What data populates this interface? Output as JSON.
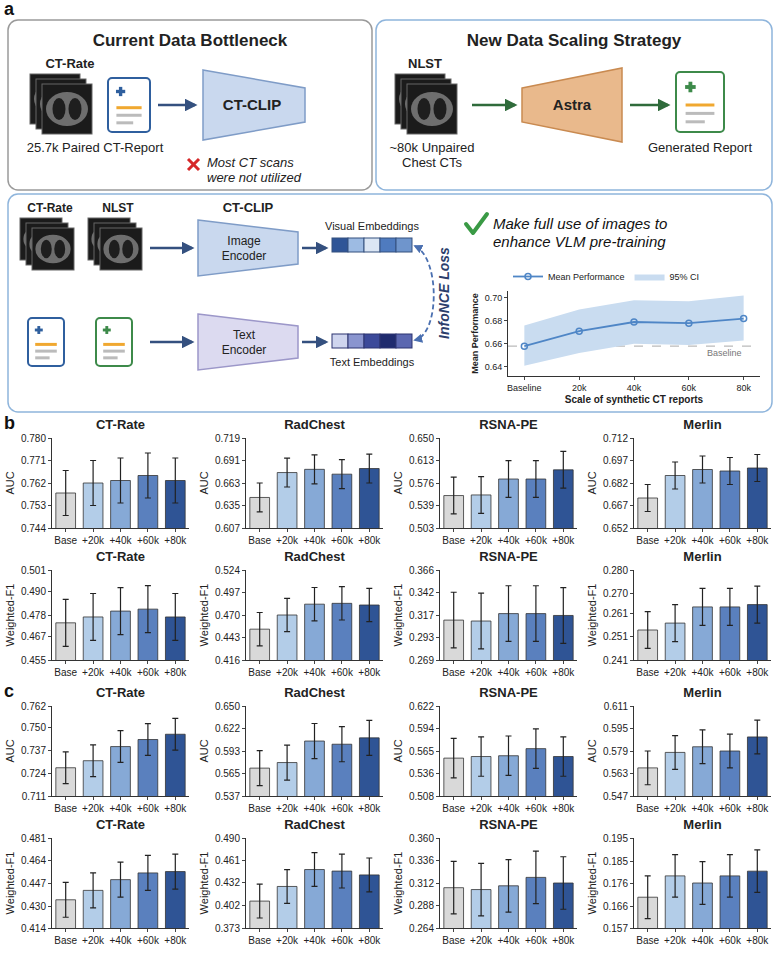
{
  "panel_labels": [
    "a",
    "b",
    "c"
  ],
  "diagram": {
    "bottleneck": {
      "title": "Current Data Bottleneck",
      "dataset": "CT-Rate",
      "caption": "25.7k Paired CT-Report",
      "model": "CT-CLIP",
      "note": "Most CT scans were not utilized"
    },
    "scaling": {
      "title": "New Data Scaling Strategy",
      "dataset": "NLST",
      "caption": "~80k Unpaired Chest CTs",
      "model": "Astra",
      "output": "Generated Report"
    },
    "pretraining": {
      "datasets": [
        "CT-Rate",
        "NLST"
      ],
      "model": "CT-CLIP",
      "image_encoder": "Image Encoder",
      "text_encoder": "Text Encoder",
      "visual_embeddings": "Visual Embeddings",
      "text_embeddings": "Text Embeddings",
      "loss": "InfoNCE Loss",
      "message": "Make full use of images to enhance VLM pre-training"
    }
  },
  "chart_data": [
    {
      "type": "line",
      "xlabel": "Scale of synthetic CT reports",
      "ylabel": "Mean Performance",
      "categories": [
        "Baseline",
        "20k",
        "40k",
        "60k",
        "80k"
      ],
      "series": [
        {
          "name": "Mean Performance",
          "color": "#4f86c6",
          "marker": "open circle",
          "values": [
            0.658,
            0.671,
            0.679,
            0.678,
            0.682
          ]
        }
      ],
      "band": {
        "name": "95% CI",
        "color": "#c9dcf0",
        "lower": [
          0.641,
          0.652,
          0.66,
          0.659,
          0.663
        ],
        "upper": [
          0.676,
          0.69,
          0.698,
          0.697,
          0.702
        ]
      },
      "reference": {
        "label": "Baseline",
        "value": 0.658,
        "color": "#bbbbbb",
        "line_style": "dashed"
      },
      "ylim": [
        0.632,
        0.706
      ],
      "yticks": [
        0.64,
        0.66,
        0.68,
        {
          "value": 0.7,
          "label": "0.70"
        }
      ],
      "legend": "top"
    },
    {
      "type": "bar",
      "title": "CT-Rate",
      "ylabel": "AUC",
      "categories": [
        "Base",
        "+20k",
        "+40k",
        "+60k",
        "+80k"
      ],
      "values": [
        0.758,
        0.762,
        0.763,
        0.765,
        0.763
      ],
      "errors": [
        0.009,
        0.009,
        0.009,
        0.009,
        0.009
      ],
      "colors": [
        "#d9d9d9",
        "#b3cde8",
        "#86a9d6",
        "#5a80be",
        "#2f5495"
      ],
      "ylim": [
        0.744,
        0.78
      ],
      "yticks": [
        0.744,
        0.753,
        0.762,
        0.771,
        {
          "value": 0.78,
          "label": "0.780"
        }
      ]
    },
    {
      "type": "bar",
      "title": "RadChest",
      "ylabel": "AUC",
      "categories": [
        "Base",
        "+20k",
        "+40k",
        "+60k",
        "+80k"
      ],
      "values": [
        0.645,
        0.676,
        0.68,
        0.674,
        0.681
      ],
      "errors": [
        0.018,
        0.018,
        0.018,
        0.018,
        0.018
      ],
      "colors": [
        "#d9d9d9",
        "#b3cde8",
        "#86a9d6",
        "#5a80be",
        "#2f5495"
      ],
      "ylim": [
        0.607,
        0.719
      ],
      "yticks": [
        0.607,
        0.635,
        0.663,
        0.691,
        0.719
      ]
    },
    {
      "type": "bar",
      "title": "RSNA-PE",
      "ylabel": "AUC",
      "categories": [
        "Base",
        "+20k",
        "+40k",
        "+60k",
        "+80k"
      ],
      "values": [
        0.556,
        0.557,
        0.583,
        0.583,
        0.598
      ],
      "errors": [
        0.03,
        0.03,
        0.03,
        0.03,
        0.03
      ],
      "colors": [
        "#d9d9d9",
        "#b3cde8",
        "#86a9d6",
        "#5a80be",
        "#2f5495"
      ],
      "ylim": [
        0.503,
        0.65
      ],
      "yticks": [
        0.503,
        0.539,
        0.576,
        0.613,
        {
          "value": 0.65,
          "label": "0.650"
        }
      ]
    },
    {
      "type": "bar",
      "title": "Merlin",
      "ylabel": "AUC",
      "categories": [
        "Base",
        "+20k",
        "+40k",
        "+60k",
        "+80k"
      ],
      "values": [
        0.672,
        0.687,
        0.691,
        0.69,
        0.692
      ],
      "errors": [
        0.009,
        0.009,
        0.009,
        0.009,
        0.009
      ],
      "colors": [
        "#d9d9d9",
        "#b3cde8",
        "#86a9d6",
        "#5a80be",
        "#2f5495"
      ],
      "ylim": [
        0.652,
        0.712
      ],
      "yticks": [
        0.652,
        0.667,
        0.682,
        0.697,
        0.712
      ]
    },
    {
      "type": "bar",
      "title": "CT-Rate",
      "ylabel": "Weighted-F1",
      "categories": [
        "Base",
        "+20k",
        "+40k",
        "+60k",
        "+80k"
      ],
      "values": [
        0.474,
        0.477,
        0.48,
        0.481,
        0.477
      ],
      "errors": [
        0.012,
        0.012,
        0.012,
        0.012,
        0.012
      ],
      "colors": [
        "#d9d9d9",
        "#b3cde8",
        "#86a9d6",
        "#5a80be",
        "#2f5495"
      ],
      "ylim": [
        0.455,
        0.501
      ],
      "yticks": [
        0.455,
        0.467,
        0.478,
        {
          "value": 0.49,
          "label": "0.490"
        },
        0.501
      ]
    },
    {
      "type": "bar",
      "title": "RadChest",
      "ylabel": "Weighted-F1",
      "categories": [
        "Base",
        "+20k",
        "+40k",
        "+60k",
        "+80k"
      ],
      "values": [
        0.453,
        0.47,
        0.483,
        0.484,
        0.482
      ],
      "errors": [
        0.02,
        0.02,
        0.02,
        0.02,
        0.02
      ],
      "colors": [
        "#d9d9d9",
        "#b3cde8",
        "#86a9d6",
        "#5a80be",
        "#2f5495"
      ],
      "ylim": [
        0.416,
        0.524
      ],
      "yticks": [
        0.416,
        0.443,
        {
          "value": 0.47,
          "label": "0.470"
        },
        0.497,
        0.524
      ]
    },
    {
      "type": "bar",
      "title": "RSNA-PE",
      "ylabel": "Weighted-F1",
      "categories": [
        "Base",
        "+20k",
        "+40k",
        "+60k",
        "+80k"
      ],
      "values": [
        0.312,
        0.311,
        0.319,
        0.319,
        0.317
      ],
      "errors": [
        0.03,
        0.03,
        0.03,
        0.03,
        0.03
      ],
      "colors": [
        "#d9d9d9",
        "#b3cde8",
        "#86a9d6",
        "#5a80be",
        "#2f5495"
      ],
      "ylim": [
        0.269,
        0.366
      ],
      "yticks": [
        0.269,
        0.293,
        0.317,
        0.342,
        0.366
      ]
    },
    {
      "type": "bar",
      "title": "Merlin",
      "ylabel": "Weighted-F1",
      "categories": [
        "Base",
        "+20k",
        "+40k",
        "+60k",
        "+80k"
      ],
      "values": [
        0.254,
        0.257,
        0.264,
        0.264,
        0.265
      ],
      "errors": [
        0.008,
        0.008,
        0.008,
        0.008,
        0.008
      ],
      "colors": [
        "#d9d9d9",
        "#b3cde8",
        "#86a9d6",
        "#5a80be",
        "#2f5495"
      ],
      "ylim": [
        0.241,
        0.28
      ],
      "yticks": [
        0.241,
        0.251,
        0.261,
        {
          "value": 0.27,
          "label": "0.270"
        },
        {
          "value": 0.28,
          "label": "0.280"
        }
      ]
    },
    {
      "type": "bar",
      "title": "CT-Rate",
      "ylabel": "AUC",
      "categories": [
        "Base",
        "+20k",
        "+40k",
        "+60k",
        "+80k"
      ],
      "values": [
        0.727,
        0.731,
        0.739,
        0.743,
        0.746
      ],
      "errors": [
        0.009,
        0.009,
        0.009,
        0.009,
        0.009
      ],
      "colors": [
        "#d9d9d9",
        "#b3cde8",
        "#86a9d6",
        "#5a80be",
        "#2f5495"
      ],
      "ylim": [
        0.711,
        0.762
      ],
      "yticks": [
        0.711,
        0.724,
        0.737,
        {
          "value": 0.75,
          "label": "0.750"
        },
        0.762
      ]
    },
    {
      "type": "bar",
      "title": "RadChest",
      "ylabel": "AUC",
      "categories": [
        "Base",
        "+20k",
        "+40k",
        "+60k",
        "+80k"
      ],
      "values": [
        0.572,
        0.579,
        0.606,
        0.602,
        0.61
      ],
      "errors": [
        0.022,
        0.022,
        0.022,
        0.022,
        0.022
      ],
      "colors": [
        "#d9d9d9",
        "#b3cde8",
        "#86a9d6",
        "#5a80be",
        "#2f5495"
      ],
      "ylim": [
        0.537,
        0.65
      ],
      "yticks": [
        0.537,
        0.565,
        0.593,
        0.622,
        {
          "value": 0.65,
          "label": "0.650"
        }
      ]
    },
    {
      "type": "bar",
      "title": "RSNA-PE",
      "ylabel": "AUC",
      "categories": [
        "Base",
        "+20k",
        "+40k",
        "+60k",
        "+80k"
      ],
      "values": [
        0.556,
        0.558,
        0.559,
        0.568,
        0.558
      ],
      "errors": [
        0.025,
        0.025,
        0.025,
        0.025,
        0.025
      ],
      "colors": [
        "#d9d9d9",
        "#b3cde8",
        "#86a9d6",
        "#5a80be",
        "#2f5495"
      ],
      "ylim": [
        0.508,
        0.622
      ],
      "yticks": [
        0.508,
        0.536,
        0.565,
        0.594,
        0.622
      ]
    },
    {
      "type": "bar",
      "title": "Merlin",
      "ylabel": "AUC",
      "categories": [
        "Base",
        "+20k",
        "+40k",
        "+60k",
        "+80k"
      ],
      "values": [
        0.567,
        0.578,
        0.582,
        0.579,
        0.589
      ],
      "errors": [
        0.012,
        0.012,
        0.012,
        0.012,
        0.012
      ],
      "colors": [
        "#d9d9d9",
        "#b3cde8",
        "#86a9d6",
        "#5a80be",
        "#2f5495"
      ],
      "ylim": [
        0.547,
        0.611
      ],
      "yticks": [
        0.547,
        0.563,
        0.579,
        0.595,
        0.611
      ]
    },
    {
      "type": "bar",
      "title": "CT-Rate",
      "ylabel": "Weighted-F1",
      "categories": [
        "Base",
        "+20k",
        "+40k",
        "+60k",
        "+80k"
      ],
      "values": [
        0.435,
        0.442,
        0.45,
        0.455,
        0.456
      ],
      "errors": [
        0.013,
        0.013,
        0.013,
        0.013,
        0.013
      ],
      "colors": [
        "#d9d9d9",
        "#b3cde8",
        "#86a9d6",
        "#5a80be",
        "#2f5495"
      ],
      "ylim": [
        0.414,
        0.481
      ],
      "yticks": [
        0.414,
        {
          "value": 0.43,
          "label": "0.430"
        },
        0.447,
        0.464,
        0.481
      ]
    },
    {
      "type": "bar",
      "title": "RadChest",
      "ylabel": "Weighted-F1",
      "categories": [
        "Base",
        "+20k",
        "+40k",
        "+60k",
        "+80k"
      ],
      "values": [
        0.408,
        0.427,
        0.449,
        0.447,
        0.442
      ],
      "errors": [
        0.022,
        0.022,
        0.022,
        0.022,
        0.022
      ],
      "colors": [
        "#d9d9d9",
        "#b3cde8",
        "#86a9d6",
        "#5a80be",
        "#2f5495"
      ],
      "ylim": [
        0.373,
        0.49
      ],
      "yticks": [
        0.373,
        0.402,
        0.432,
        0.461,
        {
          "value": 0.49,
          "label": "0.490"
        }
      ]
    },
    {
      "type": "bar",
      "title": "RSNA-PE",
      "ylabel": "Weighted-F1",
      "categories": [
        "Base",
        "+20k",
        "+40k",
        "+60k",
        "+80k"
      ],
      "values": [
        0.307,
        0.305,
        0.309,
        0.318,
        0.312
      ],
      "errors": [
        0.028,
        0.028,
        0.028,
        0.028,
        0.028
      ],
      "colors": [
        "#d9d9d9",
        "#b3cde8",
        "#86a9d6",
        "#5a80be",
        "#2f5495"
      ],
      "ylim": [
        0.264,
        0.36
      ],
      "yticks": [
        0.264,
        0.288,
        0.312,
        0.336,
        {
          "value": 0.36,
          "label": "0.360"
        }
      ]
    },
    {
      "type": "bar",
      "title": "Merlin",
      "ylabel": "Weighted-F1",
      "categories": [
        "Base",
        "+20k",
        "+40k",
        "+60k",
        "+80k"
      ],
      "values": [
        0.17,
        0.179,
        0.176,
        0.179,
        0.181
      ],
      "errors": [
        0.009,
        0.009,
        0.009,
        0.009,
        0.009
      ],
      "colors": [
        "#d9d9d9",
        "#b3cde8",
        "#86a9d6",
        "#5a80be",
        "#2f5495"
      ],
      "ylim": [
        0.157,
        0.195
      ],
      "yticks": [
        0.157,
        0.166,
        0.176,
        0.185,
        0.195
      ]
    }
  ]
}
